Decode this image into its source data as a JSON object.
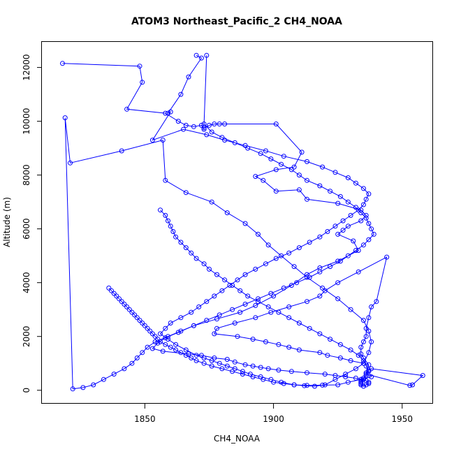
{
  "chart_data": {
    "type": "line",
    "title": "ATOM3 Northeast_Pacific_2 CH4_NOAA",
    "xlabel": "CH4_NOAA",
    "ylabel": "Altitude (m)",
    "xlim": [
      1810,
      1962
    ],
    "ylim": [
      -500,
      12950
    ],
    "xticks": [
      1850,
      1900,
      1950
    ],
    "yticks": [
      0,
      2000,
      4000,
      6000,
      8000,
      10000,
      12000
    ],
    "grid": false,
    "color": "#0000ff",
    "marker": "open-circle",
    "series": [
      {
        "x": [
          1818,
          1848,
          1849,
          1843,
          1858,
          1863,
          1866,
          1869,
          1872,
          1873,
          1873,
          1875,
          1877,
          1879,
          1881,
          1901,
          1911,
          1908,
          1901,
          1893,
          1896,
          1901,
          1910,
          1913,
          1925,
          1934,
          1936,
          1934,
          1929,
          1927,
          1925,
          1931,
          1933,
          1925,
          1918,
          1913,
          1907,
          1900,
          1893,
          1887,
          1878,
          1869,
          1863,
          1858,
          1855,
          1853,
          1857,
          1867,
          1872,
          1877,
          1882,
          1885,
          1889,
          1892,
          1895,
          1898,
          1902,
          1907,
          1913,
          1920,
          1924,
          1928,
          1932,
          1934,
          1936,
          1937,
          1937,
          1936,
          1935,
          1934,
          1934,
          1934,
          1934,
          1935,
          1935,
          1936,
          1936,
          1937,
          1938,
          1958,
          1954,
          1953,
          1936,
          1937,
          1935,
          1934,
          1934,
          1935,
          1936,
          1936,
          1937,
          1938,
          1940,
          1944,
          1933,
          1925,
          1920,
          1918,
          1913,
          1906,
          1899,
          1893,
          1885,
          1878,
          1877,
          1886,
          1892,
          1897,
          1902,
          1906,
          1910,
          1918,
          1921,
          1926,
          1930,
          1935
        ],
        "y": [
          12150,
          12050,
          11450,
          10450,
          10300,
          10000,
          9850,
          9800,
          9850,
          9700,
          9750,
          9850,
          9900,
          9900,
          9900,
          9900,
          8850,
          8300,
          8200,
          7950,
          7800,
          7400,
          7450,
          7100,
          6950,
          6700,
          6500,
          6300,
          6100,
          5950,
          5800,
          5550,
          5200,
          4800,
          4550,
          4300,
          3900,
          3500,
          3150,
          2900,
          2650,
          2400,
          2150,
          1950,
          1750,
          1550,
          1450,
          1350,
          1300,
          1200,
          1150,
          1050,
          950,
          900,
          850,
          800,
          750,
          700,
          650,
          600,
          550,
          500,
          450,
          400,
          350,
          300,
          250,
          200,
          150,
          200,
          250,
          300,
          350,
          400,
          450,
          550,
          650,
          750,
          800,
          550,
          200,
          180,
          600,
          950,
          1200,
          1350,
          1600,
          1800,
          2000,
          2300,
          2700,
          3100,
          3300,
          4950,
          4400,
          4000,
          3700,
          3500,
          3300,
          3100,
          2900,
          2700,
          2500,
          2300,
          2100,
          2000,
          1900,
          1800,
          1700,
          1600,
          1500,
          1400,
          1300,
          1200,
          1100,
          1000
        ]
      },
      {
        "x": [
          1870,
          1872,
          1867,
          1864,
          1859,
          1860,
          1853,
          1865,
          1874,
          1881,
          1889,
          1897,
          1904,
          1913,
          1919,
          1924,
          1929,
          1932,
          1935,
          1937,
          1936,
          1935,
          1933,
          1930,
          1927,
          1924,
          1921,
          1918,
          1914,
          1910,
          1906,
          1901,
          1897,
          1893,
          1889,
          1886,
          1883,
          1880,
          1877,
          1874,
          1871,
          1868,
          1864,
          1860,
          1858,
          1856,
          1859,
          1862,
          1866,
          1870,
          1873,
          1876,
          1879,
          1882,
          1885,
          1888,
          1891,
          1895,
          1899,
          1903,
          1908,
          1913,
          1919,
          1925,
          1929,
          1934,
          1938,
          1937,
          1936,
          1935,
          1933,
          1930,
          1926,
          1922,
          1918,
          1914,
          1910,
          1906,
          1902,
          1898,
          1894,
          1890,
          1887,
          1884,
          1881,
          1878,
          1875,
          1873,
          1870,
          1868,
          1866,
          1864,
          1862,
          1861,
          1860,
          1859,
          1858,
          1856
        ],
        "y": [
          12450,
          12350,
          11650,
          11000,
          10300,
          10350,
          9300,
          9700,
          9500,
          9300,
          9100,
          8900,
          8700,
          8500,
          8300,
          8100,
          7900,
          7700,
          7500,
          7300,
          7100,
          6900,
          6700,
          6500,
          6300,
          6100,
          5900,
          5700,
          5500,
          5300,
          5100,
          4900,
          4700,
          4500,
          4300,
          4100,
          3900,
          3700,
          3500,
          3300,
          3100,
          2900,
          2700,
          2500,
          2300,
          2100,
          1900,
          1700,
          1500,
          1300,
          1200,
          1100,
          1000,
          900,
          800,
          700,
          600,
          500,
          400,
          300,
          200,
          180,
          190,
          200,
          300,
          400,
          500,
          700,
          900,
          1100,
          1300,
          1500,
          1700,
          1900,
          2100,
          2300,
          2500,
          2700,
          2900,
          3100,
          3300,
          3500,
          3700,
          3900,
          4100,
          4300,
          4500,
          4700,
          4900,
          5100,
          5300,
          5500,
          5700,
          5900,
          6100,
          6300,
          6500,
          6700
        ]
      },
      {
        "x": [
          1874,
          1873,
          1876,
          1880,
          1885,
          1890,
          1895,
          1899,
          1903,
          1907,
          1910,
          1913,
          1918,
          1922,
          1926,
          1929,
          1932,
          1934,
          1936,
          1937,
          1938,
          1939,
          1937,
          1935,
          1932,
          1929,
          1926,
          1922,
          1918,
          1914,
          1909,
          1904,
          1899,
          1894,
          1889,
          1884,
          1879,
          1874,
          1869,
          1864,
          1859,
          1854,
          1851,
          1849,
          1847,
          1845,
          1842,
          1838,
          1834,
          1830,
          1826,
          1822,
          1819,
          1821,
          1841,
          1857,
          1858,
          1866,
          1876,
          1882,
          1889,
          1894,
          1898,
          1903,
          1908,
          1913,
          1919,
          1925,
          1930,
          1935,
          1937,
          1938,
          1937,
          1935,
          1932,
          1928,
          1924,
          1920,
          1916,
          1912,
          1908,
          1904,
          1900,
          1896,
          1892,
          1888,
          1884,
          1880,
          1876,
          1873,
          1870,
          1868,
          1866,
          1864,
          1862,
          1860,
          1858,
          1856,
          1855,
          1854,
          1853,
          1852,
          1851,
          1850,
          1849,
          1848,
          1847,
          1846,
          1845,
          1844,
          1843,
          1842,
          1841,
          1840,
          1839,
          1838,
          1837,
          1836
        ],
        "y": [
          12450,
          9900,
          9600,
          9400,
          9200,
          9000,
          8800,
          8600,
          8400,
          8200,
          8000,
          7800,
          7600,
          7400,
          7200,
          7000,
          6800,
          6600,
          6400,
          6200,
          6000,
          5800,
          5600,
          5400,
          5200,
          5000,
          4800,
          4600,
          4400,
          4200,
          4000,
          3800,
          3600,
          3400,
          3200,
          3000,
          2800,
          2600,
          2400,
          2200,
          2000,
          1800,
          1600,
          1400,
          1200,
          1000,
          800,
          600,
          400,
          200,
          100,
          50,
          10130,
          8450,
          8900,
          9300,
          7800,
          7350,
          7000,
          6600,
          6200,
          5800,
          5400,
          5000,
          4600,
          4200,
          3800,
          3400,
          3000,
          2600,
          2200,
          1800,
          1400,
          1000,
          800,
          600,
          400,
          200,
          150,
          170,
          200,
          250,
          300,
          400,
          500,
          600,
          700,
          800,
          900,
          1000,
          1100,
          1200,
          1300,
          1400,
          1500,
          1600,
          1700,
          1800,
          1900,
          2000,
          2100,
          2200,
          2300,
          2400,
          2500,
          2600,
          2700,
          2800,
          2900,
          3000,
          3100,
          3200,
          3300,
          3400,
          3500,
          3600,
          3700,
          3800
        ]
      }
    ]
  }
}
